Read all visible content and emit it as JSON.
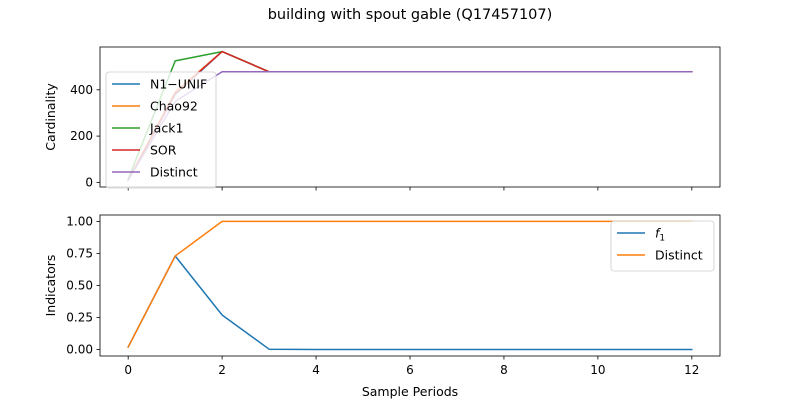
{
  "figure": {
    "title": "building with spout gable (Q17457107)",
    "xlabel": "Sample Periods"
  },
  "chart_data": [
    {
      "type": "line",
      "ylabel": "Cardinality",
      "xlim": [
        -0.6,
        12.6
      ],
      "ylim": [
        -20,
        585
      ],
      "xticks": [
        0,
        2,
        4,
        6,
        8,
        10,
        12
      ],
      "show_xticklabels": false,
      "yticks": [
        0,
        200,
        400
      ],
      "ytick_labels": [
        "0",
        "200",
        "400"
      ],
      "legend_loc": "upper-left",
      "series": [
        {
          "name": "N1−UNIF",
          "color": "#1f77b4",
          "x": [
            0,
            1,
            2,
            3,
            4,
            5,
            6,
            7,
            8,
            9,
            10,
            11,
            12
          ],
          "y": [
            10,
            380,
            565,
            478,
            478,
            478,
            478,
            478,
            478,
            478,
            478,
            478,
            478
          ]
        },
        {
          "name": "Chao92",
          "color": "#ff7f0e",
          "x": [
            0,
            1,
            2,
            3,
            4,
            5,
            6,
            7,
            8,
            9,
            10,
            11,
            12
          ],
          "y": [
            10,
            390,
            565,
            478,
            478,
            478,
            478,
            478,
            478,
            478,
            478,
            478,
            478
          ]
        },
        {
          "name": "Jack1",
          "color": "#2ca02c",
          "x": [
            0,
            1,
            2,
            3,
            4,
            5,
            6,
            7,
            8,
            9,
            10,
            11,
            12
          ],
          "y": [
            15,
            525,
            565,
            478,
            478,
            478,
            478,
            478,
            478,
            478,
            478,
            478,
            478
          ]
        },
        {
          "name": "SOR",
          "color": "#d62728",
          "x": [
            0,
            1,
            2,
            3,
            4,
            5,
            6,
            7,
            8,
            9,
            10,
            11,
            12
          ],
          "y": [
            10,
            385,
            565,
            478,
            478,
            478,
            478,
            478,
            478,
            478,
            478,
            478,
            478
          ]
        },
        {
          "name": "Distinct",
          "color": "#9467bd",
          "x": [
            0,
            1,
            2,
            3,
            4,
            5,
            6,
            7,
            8,
            9,
            10,
            11,
            12
          ],
          "y": [
            10,
            350,
            478,
            478,
            478,
            478,
            478,
            478,
            478,
            478,
            478,
            478,
            478
          ]
        }
      ]
    },
    {
      "type": "line",
      "ylabel": "Indicators",
      "xlim": [
        -0.6,
        12.6
      ],
      "ylim": [
        -0.05,
        1.05
      ],
      "xticks": [
        0,
        2,
        4,
        6,
        8,
        10,
        12
      ],
      "xtick_labels": [
        "0",
        "2",
        "4",
        "6",
        "8",
        "10",
        "12"
      ],
      "show_xticklabels": true,
      "yticks": [
        0,
        0.25,
        0.5,
        0.75,
        1.0
      ],
      "ytick_labels": [
        "0.00",
        "0.25",
        "0.50",
        "0.75",
        "1.00"
      ],
      "legend_loc": "upper-right",
      "series": [
        {
          "name": "f",
          "name_sub": "1",
          "color": "#1f77b4",
          "x": [
            0,
            1,
            2,
            3,
            4,
            5,
            6,
            7,
            8,
            9,
            10,
            11,
            12
          ],
          "y": [
            0.02,
            0.73,
            0.27,
            0.003,
            0.001,
            0.001,
            0.001,
            0.001,
            0.001,
            0.001,
            0.001,
            0.001,
            0.001
          ]
        },
        {
          "name": "Distinct",
          "color": "#ff7f0e",
          "x": [
            0,
            1,
            2,
            3,
            4,
            5,
            6,
            7,
            8,
            9,
            10,
            11,
            12
          ],
          "y": [
            0.02,
            0.73,
            1.0,
            1.0,
            1.0,
            1.0,
            1.0,
            1.0,
            1.0,
            1.0,
            1.0,
            1.0,
            1.0
          ]
        }
      ]
    }
  ]
}
